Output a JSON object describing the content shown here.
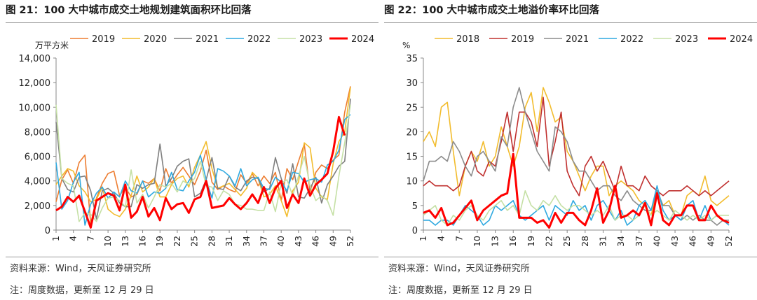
{
  "figures": [
    {
      "title": "图 21：100 大中城市成交土地规划建筑面积环比回落",
      "source": "资料来源：Wind，天风证券研究所",
      "note": "注：周度数据，更新至 12 月 29 日"
    },
    {
      "title": "图 22：100 大中城市成交土地溢价率环比回落",
      "source": "资料来源：Wind，天风证券研究所",
      "note": "注：周度数据，更新至 12 月 29 日"
    }
  ],
  "chart_data": [
    {
      "type": "line",
      "title": "图 21：100 大中城市成交土地规划建筑面积环比回落",
      "ylabel": "万平方米",
      "xlabel": "",
      "ylim": [
        0,
        14000
      ],
      "yticks": [
        0,
        2000,
        4000,
        6000,
        8000,
        10000,
        12000,
        14000
      ],
      "ytick_labels": [
        "0",
        "2,000",
        "4,000",
        "6,000",
        "8,000",
        "10,000",
        "12,000",
        "14,000"
      ],
      "xticks": [
        1,
        4,
        7,
        10,
        13,
        16,
        19,
        22,
        25,
        28,
        31,
        34,
        37,
        40,
        43,
        46,
        49,
        52
      ],
      "xlim": [
        1,
        52
      ],
      "grid": false,
      "legend_position": "top",
      "series": [
        {
          "name": "2019",
          "color": "#ED7D31",
          "width": 1.6,
          "values": [
            2300,
            4100,
            4900,
            3800,
            5500,
            6100,
            500,
            2600,
            3800,
            4600,
            4800,
            2800,
            3500,
            2700,
            2900,
            4000,
            3800,
            4200,
            3200,
            5000,
            3800,
            4500,
            5100,
            4400,
            3700,
            4800,
            6500,
            3900,
            3300,
            3600,
            3300,
            3100,
            4500,
            3800,
            4600,
            3600,
            4400,
            3800,
            4700,
            2400,
            5000,
            4100,
            5600,
            7000,
            3100,
            4700,
            5300,
            5000,
            5700,
            6100,
            9600,
            11700
          ]
        },
        {
          "name": "2020",
          "color": "#F2BC2D",
          "width": 1.6,
          "values": [
            3700,
            4400,
            5000,
            4800,
            3600,
            3100,
            2300,
            2500,
            3500,
            1700,
            1300,
            1100,
            1700,
            2800,
            4400,
            3100,
            3500,
            4200,
            2700,
            2700,
            3700,
            4200,
            4400,
            3500,
            5100,
            6100,
            7200,
            5000,
            3400,
            3600,
            3800,
            3300,
            2800,
            3400,
            4700,
            4200,
            2700,
            2900,
            3600,
            2400,
            1100,
            3200,
            3900,
            7100,
            6700,
            3400,
            2700,
            2500,
            5400,
            7200,
            8000,
            11600
          ]
        },
        {
          "name": "2021",
          "color": "#7F7F7F",
          "width": 1.6,
          "values": [
            8800,
            4200,
            3300,
            3100,
            4300,
            4400,
            3200,
            900,
            3200,
            3400,
            3000,
            2200,
            1900,
            1900,
            3700,
            3400,
            3700,
            3800,
            7000,
            3600,
            4200,
            5200,
            5600,
            5800,
            2700,
            3000,
            4100,
            5900,
            3400,
            3300,
            4400,
            3500,
            3200,
            4000,
            4300,
            4200,
            3100,
            3400,
            5900,
            4200,
            3000,
            5400,
            2700,
            2600,
            3400,
            4300,
            2200,
            3700,
            4400,
            5200,
            5600,
            10700
          ]
        },
        {
          "name": "2022",
          "color": "#2FA9E0",
          "width": 1.6,
          "values": [
            5500,
            1700,
            2400,
            3900,
            4700,
            400,
            2100,
            3000,
            3500,
            2600,
            3100,
            2700,
            4000,
            3200,
            3000,
            4000,
            2700,
            3100,
            3000,
            3400,
            4700,
            3300,
            3200,
            4000,
            4700,
            6100,
            4100,
            2600,
            5000,
            4800,
            4400,
            3600,
            5000,
            3600,
            4100,
            4300,
            3400,
            3300,
            4300,
            3900,
            3200,
            4700,
            4600,
            3900,
            4100,
            4200,
            3900,
            5300,
            5600,
            6500,
            9000,
            9400
          ]
        },
        {
          "name": "2023",
          "color": "#C5E0A5",
          "width": 1.6,
          "values": [
            10200,
            4200,
            3800,
            3600,
            700,
            1400,
            1300,
            700,
            1800,
            2600,
            2700,
            2400,
            1900,
            4900,
            2200,
            2900,
            1800,
            2700,
            3700,
            3500,
            3800,
            3100,
            4000,
            3700,
            4200,
            5600,
            3600,
            3500,
            2400,
            3200,
            2900,
            2100,
            2000,
            1700,
            1700,
            1600,
            1600,
            3100,
            1500,
            3800,
            4100,
            2800,
            4400,
            6000,
            3600,
            2400,
            2800,
            2400,
            1200,
            4400,
            7100,
            10200
          ]
        },
        {
          "name": "2024",
          "color": "#FF0000",
          "width": 3,
          "values": [
            1600,
            1900,
            2700,
            2300,
            2800,
            1500,
            200,
            2400,
            2700,
            3000,
            2800,
            1600,
            3700,
            1000,
            1500,
            2700,
            1100,
            1800,
            800,
            2600,
            1700,
            2100,
            2200,
            1400,
            2500,
            2700,
            4000,
            1800,
            1900,
            2000,
            2600,
            2100,
            1700,
            2200,
            2900,
            2200,
            3500,
            2200,
            3400,
            4000,
            1800,
            2900,
            2200,
            4200,
            2800,
            3700,
            4100,
            4600,
            6400,
            9200,
            7700,
            null
          ]
        }
      ]
    },
    {
      "type": "line",
      "title": "图 22：100 大中城市成交土地溢价率环比回落",
      "ylabel": "%",
      "xlabel": "",
      "ylim": [
        0,
        35
      ],
      "yticks": [
        0,
        5,
        10,
        15,
        20,
        25,
        30,
        35
      ],
      "ytick_labels": [
        "0",
        "5",
        "10",
        "15",
        "20",
        "25",
        "30",
        "35"
      ],
      "xticks": [
        1,
        4,
        7,
        10,
        13,
        16,
        19,
        22,
        25,
        28,
        31,
        34,
        37,
        40,
        43,
        46,
        49,
        52
      ],
      "xlim": [
        1,
        52
      ],
      "grid": false,
      "legend_position": "top",
      "series": [
        {
          "name": "2018",
          "color": "#F2BC2D",
          "width": 1.6,
          "values": [
            18,
            20,
            17,
            25,
            26,
            16,
            7,
            13,
            16,
            14,
            18,
            13,
            15,
            21,
            17,
            13,
            17,
            25,
            28,
            20,
            29,
            26,
            22,
            23,
            16,
            14,
            11,
            8,
            11,
            13,
            13,
            7,
            9,
            10,
            9,
            8,
            6,
            5,
            3,
            8,
            5,
            6,
            3,
            3,
            7,
            8,
            7,
            11,
            6,
            5,
            6,
            7
          ]
        },
        {
          "name": "2019",
          "color": "#C0302F",
          "width": 1.6,
          "values": [
            9,
            10,
            9,
            9,
            9,
            8,
            9,
            13,
            16,
            12,
            11,
            14,
            13,
            18,
            24,
            16,
            24,
            24,
            22,
            17,
            27,
            13,
            18,
            24,
            12,
            9,
            7,
            13,
            15,
            12,
            14,
            11,
            8,
            13,
            9,
            9,
            8,
            11,
            9,
            8,
            7,
            8,
            8,
            8,
            9,
            8,
            7,
            8,
            7,
            8,
            9,
            10
          ]
        },
        {
          "name": "2021",
          "color": "#8C8C8C",
          "width": 1.6,
          "values": [
            10,
            14,
            14,
            15,
            14,
            18,
            16,
            13,
            11,
            15,
            16,
            14,
            12,
            19,
            17,
            25,
            29,
            24,
            20,
            16,
            14,
            12,
            21,
            20,
            18,
            14,
            12,
            12,
            10,
            8,
            9,
            9,
            7,
            6,
            8,
            6,
            5,
            4,
            4,
            8,
            5,
            5,
            3,
            2,
            3,
            2,
            3,
            2,
            2,
            1,
            2,
            2
          ]
        },
        {
          "name": "2022",
          "color": "#2FA9E0",
          "width": 1.6,
          "values": [
            2,
            2,
            1,
            2,
            2,
            1,
            3,
            5,
            4,
            3,
            1,
            2,
            5,
            4,
            5,
            6,
            3,
            2,
            3,
            4,
            5,
            2,
            5,
            4,
            3,
            6,
            4,
            5,
            2,
            5,
            6,
            4,
            2,
            4,
            1,
            2,
            5,
            6,
            4,
            9,
            4,
            2,
            3,
            2,
            5,
            6,
            2,
            5,
            2,
            3,
            2,
            1
          ]
        },
        {
          "name": "2023",
          "color": "#C5E0A5",
          "width": 1.6,
          "values": [
            3,
            4,
            5,
            2,
            1,
            3,
            2,
            4,
            5,
            3,
            2,
            4,
            5,
            6,
            4,
            5,
            3,
            8,
            5,
            4,
            6,
            5,
            7,
            5,
            4,
            5,
            5,
            4,
            3,
            4,
            3,
            5,
            2,
            3,
            3,
            2,
            3,
            5,
            3,
            4,
            3,
            2,
            4,
            3,
            2,
            3,
            2,
            3,
            2,
            3,
            3,
            3
          ]
        },
        {
          "name": "2024",
          "color": "#FF0000",
          "width": 3,
          "values": [
            3.5,
            4,
            2.5,
            4.5,
            1,
            1.5,
            3,
            4.5,
            6,
            2,
            4,
            5,
            6,
            7,
            7.5,
            15.5,
            2.5,
            2.5,
            2.5,
            1.5,
            2,
            0.5,
            3.5,
            1.5,
            3.5,
            3.5,
            2,
            1,
            4,
            8.5,
            1.5,
            4,
            9,
            2.5,
            3,
            4,
            3,
            5.5,
            1,
            7.5,
            2,
            1,
            3,
            3,
            5,
            5,
            2,
            2,
            5,
            3,
            2,
            1.5
          ]
        }
      ]
    }
  ]
}
